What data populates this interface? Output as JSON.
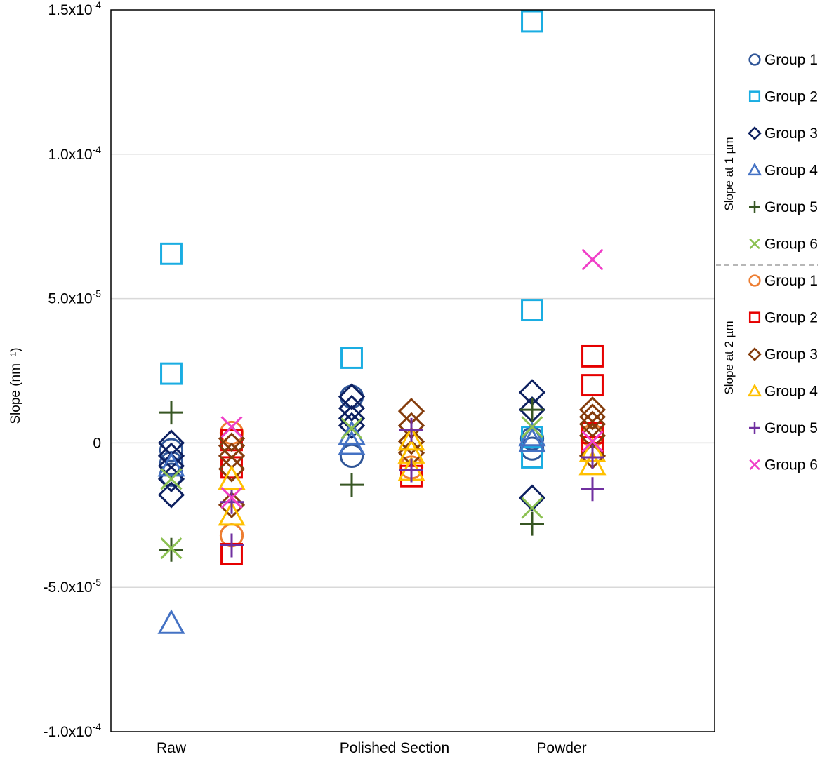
{
  "chart_data": {
    "type": "scatter",
    "ylabel": "Slope (nm⁻¹)",
    "ylim": [
      -0.0001,
      0.00015
    ],
    "yticks": [
      {
        "value": 0.00015,
        "mant": "1.5x10",
        "exp": "-4"
      },
      {
        "value": 0.0001,
        "mant": "1.0x10",
        "exp": "-4"
      },
      {
        "value": 5e-05,
        "mant": "5.0x10",
        "exp": "-5"
      },
      {
        "value": 0,
        "mant": "0",
        "exp": ""
      },
      {
        "value": -5e-05,
        "mant": "-5.0x10",
        "exp": "-5"
      },
      {
        "value": -0.0001,
        "mant": "-1.0x10",
        "exp": "-4"
      }
    ],
    "grid": true,
    "categories": [
      "Raw",
      "Polished Section",
      "Powder"
    ],
    "legend_groups": [
      {
        "title": "Slope at 1 µm",
        "series_idx": [
          0,
          1,
          2,
          3,
          4,
          5
        ]
      },
      {
        "title": "Slope at 2 µm",
        "series_idx": [
          6,
          7,
          8,
          9,
          10,
          11
        ]
      }
    ],
    "series": [
      {
        "name": "Group 1",
        "marker": "circle",
        "color": "#2F5597",
        "slope_at": "1 µm",
        "points": [
          [
            0,
            -2.5e-06
          ],
          [
            0,
            -7e-06
          ],
          [
            0,
            -1.1e-05
          ],
          [
            1,
            1.6e-05
          ],
          [
            1,
            -4.5e-06
          ],
          [
            2,
            -2e-06
          ],
          [
            2,
            1.5e-06
          ]
        ]
      },
      {
        "name": "Group 2",
        "marker": "square",
        "color": "#1AADE2",
        "slope_at": "1 µm",
        "points": [
          [
            0,
            6.55e-05
          ],
          [
            0,
            2.4e-05
          ],
          [
            1,
            2.95e-05
          ],
          [
            2,
            0.000146
          ],
          [
            2,
            4.6e-05
          ],
          [
            2,
            -5e-06
          ],
          [
            2,
            2e-06
          ]
        ]
      },
      {
        "name": "Group 3",
        "marker": "diamond",
        "color": "#0D2060",
        "slope_at": "1 µm",
        "points": [
          [
            0,
            0.0
          ],
          [
            0,
            -4.5e-06
          ],
          [
            0,
            -8e-06
          ],
          [
            0,
            -1.25e-05
          ],
          [
            0,
            -1.8e-05
          ],
          [
            1,
            1.6e-05
          ],
          [
            1,
            1.2e-05
          ],
          [
            1,
            8.5e-06
          ],
          [
            1,
            6e-06
          ],
          [
            2,
            1.75e-05
          ],
          [
            2,
            1.15e-05
          ],
          [
            2,
            -1.9e-05
          ]
        ]
      },
      {
        "name": "Group 4",
        "marker": "triangle",
        "color": "#4472C4",
        "slope_at": "1 µm",
        "points": [
          [
            0,
            -6.25e-05
          ],
          [
            0,
            -8e-06
          ],
          [
            1,
            3e-06
          ],
          [
            1,
            -5e-07
          ],
          [
            2,
            2.5e-06
          ],
          [
            2,
            5e-07
          ]
        ]
      },
      {
        "name": "Group 5",
        "marker": "plus",
        "color": "#375623",
        "slope_at": "1 µm",
        "points": [
          [
            0,
            1.05e-05
          ],
          [
            0,
            -3.7e-05
          ],
          [
            1,
            -1.45e-05
          ],
          [
            2,
            1.15e-05
          ],
          [
            2,
            -2.8e-05
          ]
        ]
      },
      {
        "name": "Group 6",
        "marker": "x",
        "color": "#8CC152",
        "slope_at": "1 µm",
        "points": [
          [
            0,
            -3.65e-05
          ],
          [
            0,
            -1.25e-05
          ],
          [
            1,
            5e-06
          ],
          [
            2,
            5.5e-06
          ],
          [
            2,
            -2.25e-05
          ]
        ]
      },
      {
        "name": "Group 1",
        "marker": "circle",
        "color": "#ED7D31",
        "slope_at": "2 µm",
        "points": [
          [
            0,
            3.5e-06
          ],
          [
            0,
            -3.2e-05
          ],
          [
            1,
            -8.5e-06
          ],
          [
            2,
            2.5e-06
          ]
        ]
      },
      {
        "name": "Group 2",
        "marker": "square",
        "color": "#E60000",
        "slope_at": "2 µm",
        "points": [
          [
            0,
            -3.85e-05
          ],
          [
            0,
            -8.5e-06
          ],
          [
            0,
            1e-06
          ],
          [
            1,
            -1.15e-05
          ],
          [
            2,
            3e-05
          ],
          [
            2,
            2e-05
          ],
          [
            2,
            3.5e-06
          ],
          [
            2,
            -1.5e-06
          ]
        ]
      },
      {
        "name": "Group 3",
        "marker": "diamond",
        "color": "#843C0C",
        "slope_at": "2 µm",
        "points": [
          [
            0,
            1.5e-06
          ],
          [
            0,
            -1e-06
          ],
          [
            0,
            -4.5e-06
          ],
          [
            0,
            -9e-06
          ],
          [
            0,
            -2.15e-05
          ],
          [
            1,
            1.1e-05
          ],
          [
            1,
            6e-06
          ],
          [
            1,
            5e-07
          ],
          [
            1,
            -3.5e-06
          ],
          [
            2,
            1.15e-05
          ],
          [
            2,
            9e-06
          ],
          [
            2,
            6.5e-06
          ],
          [
            2,
            2.5e-06
          ],
          [
            2,
            -4.5e-06
          ]
        ]
      },
      {
        "name": "Group 4",
        "marker": "triangle",
        "color": "#FFC000",
        "slope_at": "2 µm",
        "points": [
          [
            0,
            -1.25e-05
          ],
          [
            0,
            -2.5e-05
          ],
          [
            1,
            1e-06
          ],
          [
            1,
            -3.5e-06
          ],
          [
            1,
            -9.5e-06
          ],
          [
            2,
            -7.5e-06
          ],
          [
            2,
            -3e-06
          ]
        ]
      },
      {
        "name": "Group 5",
        "marker": "plus",
        "color": "#7030A0",
        "slope_at": "2 µm",
        "points": [
          [
            0,
            -3.55e-05
          ],
          [
            0,
            -2.05e-05
          ],
          [
            1,
            4.5e-06
          ],
          [
            1,
            -9.5e-06
          ],
          [
            2,
            -1.6e-05
          ],
          [
            2,
            -5e-06
          ]
        ]
      },
      {
        "name": "Group 6",
        "marker": "x",
        "color": "#F03FC8",
        "slope_at": "2 µm",
        "points": [
          [
            0,
            5.5e-06
          ],
          [
            0,
            -1.9e-05
          ],
          [
            2,
            6.35e-05
          ],
          [
            2,
            5e-07
          ]
        ]
      }
    ]
  }
}
